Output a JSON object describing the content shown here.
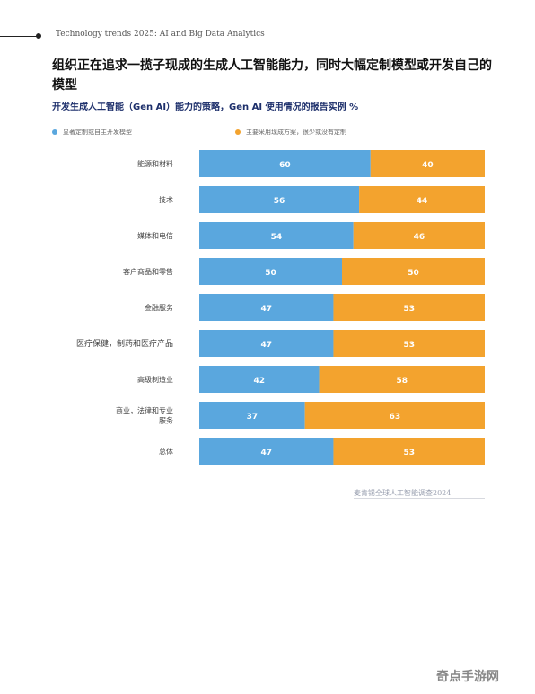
{
  "header": {
    "running_title": "Technology trends 2025: AI and Big Data Analytics"
  },
  "headline": "组织正在追求一揽子现成的生成人工智能能力，同时大幅定制模型或开发自己的模型",
  "colors": {
    "blue": "#5aa7de",
    "orange": "#f3a32e",
    "bar_text": "#ffffff"
  },
  "chart_data": {
    "type": "bar",
    "orientation": "horizontal",
    "stacked": true,
    "title": "开发生成人工智能（Gen AI）能力的策略，Gen AI 使用情况的报告实例 %",
    "categories": [
      "能源和材料",
      "技术",
      "媒体和电信",
      "客户商品和零售",
      "金融服务",
      "医疗保健，制药和医疗产品",
      "高级制造业",
      "商业，法律和专业服务",
      "总体"
    ],
    "series": [
      {
        "name": "显著定制或自主开发模型",
        "color": "#5aa7de",
        "values": [
          60,
          56,
          54,
          50,
          47,
          47,
          42,
          37,
          47
        ]
      },
      {
        "name": "主要采用现成方案，很少或没有定制",
        "color": "#f3a32e",
        "values": [
          40,
          44,
          46,
          50,
          53,
          53,
          58,
          63,
          53
        ]
      }
    ],
    "xlim": [
      0,
      100
    ],
    "legend_position": "top"
  },
  "source": "麦肯锡全球人工智能调查2024",
  "watermark": "奇点手游网"
}
